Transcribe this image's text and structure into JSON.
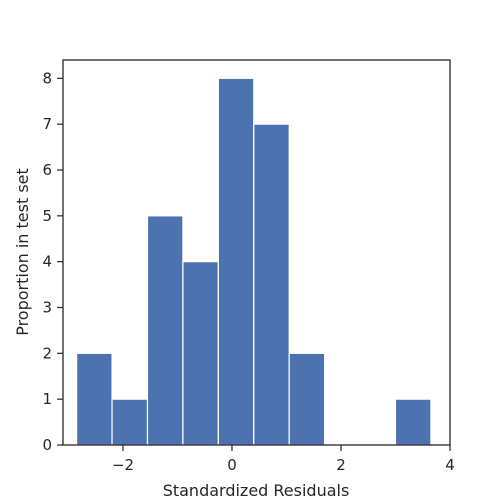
{
  "chart_data": {
    "type": "bar",
    "subtype": "histogram",
    "title": "",
    "xlabel": "Standardized Residuals",
    "ylabel": "Proportion in test set",
    "xlim": [
      -3.1,
      4.0
    ],
    "ylim": [
      0,
      8.4
    ],
    "bin_edges": [
      -2.85,
      -2.2,
      -1.55,
      -0.9,
      -0.25,
      0.4,
      1.05,
      1.7,
      2.35,
      3.0,
      3.65
    ],
    "values": [
      2,
      1,
      5,
      4,
      8,
      7,
      2,
      0,
      0,
      1
    ],
    "x_ticks": [
      -2,
      0,
      2,
      4
    ],
    "x_tick_labels": [
      "−2",
      "0",
      "2",
      "4"
    ],
    "y_ticks": [
      0,
      1,
      2,
      3,
      4,
      5,
      6,
      7,
      8
    ],
    "y_tick_labels": [
      "0",
      "1",
      "2",
      "3",
      "4",
      "5",
      "6",
      "7",
      "8"
    ],
    "bar_color": "#4c72b0",
    "grid": false
  }
}
